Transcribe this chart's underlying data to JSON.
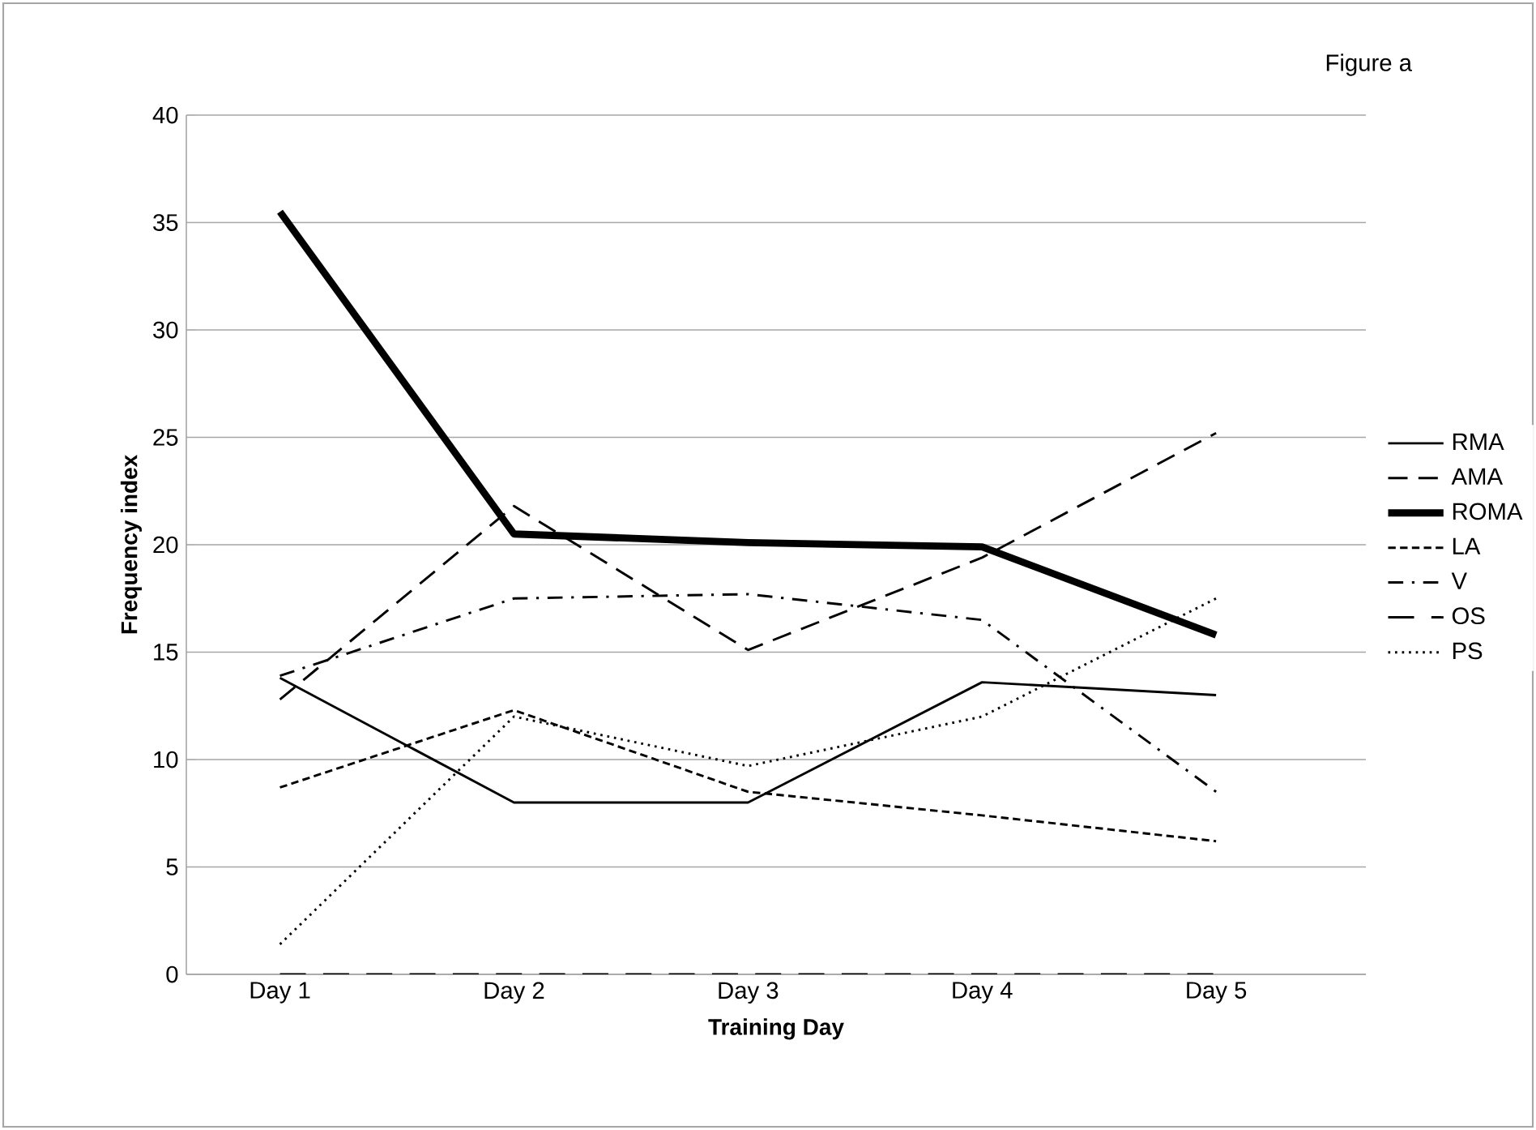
{
  "chart_data": {
    "type": "line",
    "xlabel": "Training Day",
    "ylabel": "Frequency index",
    "annotations": [
      "Figure a"
    ],
    "categories": [
      "Day 1",
      "Day 2",
      "Day 3",
      "Day 4",
      "Day 5"
    ],
    "ylim": [
      0,
      40
    ],
    "yticks": [
      0,
      5,
      10,
      15,
      20,
      25,
      30,
      35,
      40
    ],
    "grid": "y",
    "legend": "right",
    "marker": "none",
    "series": [
      {
        "name": "RMA",
        "color": "#000000",
        "line_style": "solid",
        "values": [
          13.8,
          8.0,
          8.0,
          13.6,
          13.0
        ]
      },
      {
        "name": "AMA",
        "color": "#000000",
        "line_style": "dashed",
        "values": [
          12.8,
          21.8,
          15.1,
          19.4,
          25.2
        ]
      },
      {
        "name": "ROMA",
        "color": "#000000",
        "line_style": "solid",
        "values": [
          35.5,
          20.5,
          20.1,
          19.9,
          15.8
        ]
      },
      {
        "name": "LA",
        "color": "#000000",
        "line_style": "dashed",
        "values": [
          8.7,
          12.3,
          8.5,
          7.4,
          6.2
        ]
      },
      {
        "name": "V",
        "color": "#000000",
        "line_style": "dashdot",
        "values": [
          13.9,
          17.5,
          17.7,
          16.5,
          8.5
        ]
      },
      {
        "name": "OS",
        "color": "#000000",
        "line_style": "dashed",
        "values": [
          0,
          0,
          0,
          0,
          0
        ]
      },
      {
        "name": "PS",
        "color": "#000000",
        "line_style": "dotted",
        "values": [
          1.4,
          12.0,
          9.7,
          12.0,
          17.5
        ]
      }
    ]
  }
}
